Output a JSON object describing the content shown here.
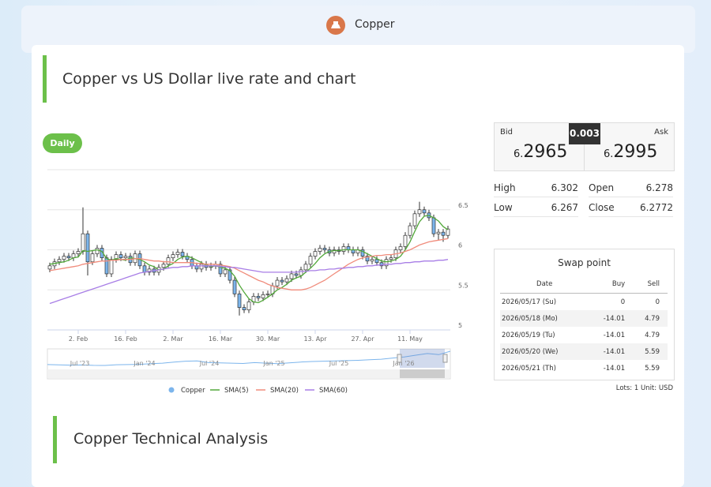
{
  "header": {
    "title": "Copper"
  },
  "page_title": "Copper vs US Dollar live rate and chart",
  "period": "Daily",
  "quote": {
    "bid_label": "Bid",
    "ask_label": "Ask",
    "spread": 0.003,
    "bid": {
      "lead": "6.",
      "main": "2965"
    },
    "ask": {
      "lead": "6.",
      "main": "2995"
    }
  },
  "stats": [
    {
      "label": "High",
      "value": 6.302
    },
    {
      "label": "Open",
      "value": 6.278
    },
    {
      "label": "Low",
      "value": 6.267
    },
    {
      "label": "Close",
      "value": 6.2772
    }
  ],
  "swap": {
    "title": "Swap point",
    "columns": [
      "Date",
      "Buy",
      "Sell"
    ],
    "rows": [
      [
        "2026/05/17 (Su)",
        0,
        0
      ],
      [
        "2026/05/18 (Mo)",
        -14.01,
        4.79
      ],
      [
        "2026/05/19 (Tu)",
        -14.01,
        4.79
      ],
      [
        "2026/05/20 (We)",
        -14.01,
        5.59
      ],
      [
        "2026/05/21 (Th)",
        -14.01,
        5.59
      ]
    ],
    "note": "Lots: 1 Unit: USD"
  },
  "section_title": "Copper Technical Analysis",
  "chart_data": {
    "type": "candlestick",
    "categories": [
      null,
      null,
      null,
      null,
      null,
      null,
      "2. Feb",
      null,
      null,
      null,
      null,
      null,
      null,
      null,
      null,
      null,
      "16. Feb",
      null,
      null,
      null,
      null,
      null,
      null,
      null,
      null,
      null,
      "2. Mar",
      null,
      null,
      null,
      null,
      null,
      null,
      null,
      null,
      null,
      "16. Mar",
      null,
      null,
      null,
      null,
      null,
      null,
      null,
      null,
      null,
      "30. Mar",
      null,
      null,
      null,
      null,
      null,
      null,
      null,
      null,
      null,
      "13. Apr",
      null,
      null,
      null,
      null,
      null,
      null,
      null,
      null,
      null,
      "27. Apr",
      null,
      null,
      null,
      null,
      null,
      null,
      null,
      null,
      null,
      "11. May",
      null,
      null,
      null,
      null,
      null,
      null,
      null,
      null
    ],
    "ylim": [
      5,
      7
    ],
    "yticks": [
      5,
      5.5,
      6,
      6.5
    ],
    "grid": true,
    "series": [
      {
        "name": "Copper",
        "color": "#7cb5ec",
        "up_color": "#ffffff",
        "line_color": "#333333",
        "open": [
          5.76,
          5.8,
          5.85,
          5.88,
          5.92,
          5.9,
          5.95,
          5.98,
          6.2,
          5.85,
          5.95,
          6.02,
          5.9,
          5.7,
          5.88,
          5.94,
          5.9,
          5.92,
          5.84,
          5.95,
          5.8,
          5.72,
          5.76,
          5.72,
          5.78,
          5.82,
          5.9,
          5.94,
          5.97,
          5.92,
          5.88,
          5.8,
          5.76,
          5.82,
          5.78,
          5.8,
          5.82,
          5.7,
          5.75,
          5.62,
          5.45,
          5.28,
          5.25,
          5.35,
          5.42,
          5.4,
          5.44,
          5.45,
          5.55,
          5.62,
          5.6,
          5.64,
          5.7,
          5.68,
          5.75,
          5.82,
          5.92,
          5.98,
          6.02,
          6.0,
          5.96,
          6.0,
          5.98,
          6.04,
          6.0,
          5.96,
          6.0,
          5.92,
          5.86,
          5.88,
          5.84,
          5.8,
          5.88,
          5.9,
          6.0,
          6.04,
          6.18,
          6.3,
          6.45,
          6.5,
          6.46,
          6.4,
          6.2,
          6.22,
          6.18
        ],
        "high": [
          5.84,
          5.89,
          5.92,
          5.96,
          5.96,
          5.99,
          6.02,
          6.53,
          6.24,
          5.99,
          6.06,
          6.06,
          5.94,
          5.92,
          5.98,
          5.98,
          5.96,
          5.96,
          5.99,
          5.99,
          5.84,
          5.8,
          5.8,
          5.82,
          5.86,
          5.94,
          5.98,
          6.01,
          6.01,
          5.96,
          5.92,
          5.84,
          5.86,
          5.86,
          5.84,
          5.86,
          5.86,
          5.79,
          5.79,
          5.66,
          5.49,
          5.32,
          5.39,
          5.46,
          5.46,
          5.48,
          5.49,
          5.59,
          5.66,
          5.66,
          5.68,
          5.74,
          5.74,
          5.79,
          5.86,
          5.96,
          6.02,
          6.06,
          6.06,
          6.04,
          6.04,
          6.04,
          6.08,
          6.08,
          6.04,
          6.04,
          6.04,
          5.96,
          5.92,
          5.92,
          5.88,
          5.92,
          5.94,
          6.04,
          6.08,
          6.22,
          6.34,
          6.49,
          6.6,
          6.54,
          6.5,
          6.44,
          6.26,
          6.26,
          6.3
        ],
        "low": [
          5.72,
          5.76,
          5.81,
          5.84,
          5.86,
          5.86,
          5.91,
          5.94,
          5.68,
          5.81,
          5.91,
          5.86,
          5.66,
          5.66,
          5.84,
          5.86,
          5.86,
          5.8,
          5.8,
          5.76,
          5.68,
          5.68,
          5.68,
          5.68,
          5.74,
          5.78,
          5.86,
          5.9,
          5.88,
          5.84,
          5.76,
          5.72,
          5.72,
          5.74,
          5.74,
          5.76,
          5.66,
          5.66,
          5.58,
          5.41,
          5.18,
          5.21,
          5.21,
          5.31,
          5.36,
          5.36,
          5.4,
          5.41,
          5.51,
          5.56,
          5.56,
          5.6,
          5.64,
          5.64,
          5.71,
          5.78,
          5.88,
          5.94,
          5.96,
          5.92,
          5.92,
          5.94,
          5.94,
          5.96,
          5.92,
          5.92,
          5.88,
          5.82,
          5.82,
          5.8,
          5.76,
          5.76,
          5.84,
          5.86,
          5.96,
          6.0,
          6.14,
          6.26,
          6.41,
          6.42,
          6.36,
          6.16,
          6.12,
          6.1,
          6.14
        ],
        "close": [
          5.8,
          5.85,
          5.88,
          5.92,
          5.9,
          5.95,
          5.98,
          6.2,
          5.85,
          5.95,
          6.02,
          5.9,
          5.7,
          5.88,
          5.94,
          5.9,
          5.92,
          5.84,
          5.95,
          5.8,
          5.72,
          5.76,
          5.72,
          5.78,
          5.82,
          5.9,
          5.94,
          5.97,
          5.92,
          5.88,
          5.8,
          5.76,
          5.82,
          5.78,
          5.8,
          5.82,
          5.7,
          5.75,
          5.62,
          5.45,
          5.28,
          5.25,
          5.35,
          5.42,
          5.4,
          5.44,
          5.45,
          5.55,
          5.62,
          5.6,
          5.64,
          5.7,
          5.68,
          5.75,
          5.82,
          5.92,
          5.98,
          6.02,
          6.0,
          5.96,
          6.0,
          5.98,
          6.04,
          6.0,
          5.96,
          6.0,
          5.92,
          5.86,
          5.88,
          5.84,
          5.8,
          5.88,
          5.9,
          6.0,
          6.04,
          6.18,
          6.3,
          6.45,
          6.5,
          6.46,
          6.4,
          6.2,
          6.22,
          6.18,
          6.26
        ]
      },
      {
        "name": "SMA(5)",
        "color": "#52a83a",
        "values": [
          5.82,
          5.83,
          5.84,
          5.85,
          5.87,
          5.9,
          5.91,
          5.99,
          5.98,
          5.99,
          6.0,
          5.98,
          5.89,
          5.87,
          5.89,
          5.88,
          5.87,
          5.9,
          5.89,
          5.88,
          5.85,
          5.81,
          5.79,
          5.75,
          5.76,
          5.8,
          5.83,
          5.88,
          5.91,
          5.92,
          5.9,
          5.87,
          5.84,
          5.81,
          5.79,
          5.8,
          5.78,
          5.77,
          5.74,
          5.67,
          5.56,
          5.47,
          5.39,
          5.35,
          5.34,
          5.37,
          5.41,
          5.45,
          5.5,
          5.53,
          5.57,
          5.62,
          5.65,
          5.67,
          5.72,
          5.77,
          5.83,
          5.9,
          5.95,
          5.98,
          5.99,
          5.99,
          6.0,
          6.0,
          6.0,
          6.0,
          5.98,
          5.95,
          5.92,
          5.89,
          5.86,
          5.85,
          5.86,
          5.88,
          5.92,
          6.0,
          6.1,
          6.23,
          6.35,
          6.42,
          6.43,
          6.4,
          6.36,
          6.29,
          6.25
        ]
      },
      {
        "name": "SMA(20)",
        "color": "#f08c7c",
        "values": [
          5.74,
          5.75,
          5.76,
          5.77,
          5.78,
          5.79,
          5.8,
          5.82,
          5.83,
          5.84,
          5.85,
          5.86,
          5.86,
          5.87,
          5.87,
          5.88,
          5.88,
          5.88,
          5.89,
          5.89,
          5.88,
          5.87,
          5.86,
          5.86,
          5.85,
          5.85,
          5.84,
          5.84,
          5.84,
          5.84,
          5.84,
          5.83,
          5.83,
          5.82,
          5.82,
          5.82,
          5.81,
          5.8,
          5.79,
          5.77,
          5.74,
          5.71,
          5.68,
          5.65,
          5.62,
          5.6,
          5.57,
          5.55,
          5.53,
          5.52,
          5.51,
          5.5,
          5.5,
          5.5,
          5.51,
          5.53,
          5.56,
          5.59,
          5.62,
          5.66,
          5.7,
          5.74,
          5.78,
          5.82,
          5.85,
          5.88,
          5.9,
          5.91,
          5.92,
          5.93,
          5.93,
          5.94,
          5.94,
          5.95,
          5.96,
          5.98,
          6.0,
          6.03,
          6.06,
          6.08,
          6.1,
          6.11,
          6.12,
          6.13,
          6.14
        ]
      },
      {
        "name": "SMA(60)",
        "color": "#a87ee6",
        "values": [
          5.33,
          5.35,
          5.37,
          5.39,
          5.41,
          5.43,
          5.45,
          5.47,
          5.49,
          5.51,
          5.53,
          5.55,
          5.57,
          5.59,
          5.61,
          5.63,
          5.65,
          5.67,
          5.69,
          5.71,
          5.72,
          5.73,
          5.74,
          5.75,
          5.76,
          5.77,
          5.78,
          5.78,
          5.79,
          5.79,
          5.8,
          5.8,
          5.8,
          5.8,
          5.8,
          5.8,
          5.79,
          5.79,
          5.78,
          5.78,
          5.77,
          5.76,
          5.75,
          5.74,
          5.73,
          5.72,
          5.72,
          5.72,
          5.72,
          5.72,
          5.72,
          5.72,
          5.72,
          5.73,
          5.73,
          5.74,
          5.74,
          5.75,
          5.75,
          5.76,
          5.76,
          5.77,
          5.77,
          5.78,
          5.78,
          5.79,
          5.79,
          5.8,
          5.8,
          5.81,
          5.81,
          5.82,
          5.82,
          5.83,
          5.83,
          5.84,
          5.84,
          5.85,
          5.85,
          5.86,
          5.86,
          5.86,
          5.87,
          5.87,
          5.88
        ]
      }
    ],
    "navigator": {
      "labels": [
        "Jul '23",
        "Jan '24",
        "Jul '24",
        "Jan '25",
        "Jul '25",
        "Jan '26"
      ],
      "values": [
        3.85,
        3.8,
        3.75,
        3.78,
        3.72,
        3.7,
        3.82,
        3.85,
        3.9,
        4.0,
        4.1,
        4.3,
        4.45,
        4.5,
        4.2,
        4.15,
        4.1,
        4.05,
        4.2,
        4.1,
        4.0,
        4.15,
        4.3,
        4.4,
        4.45,
        4.5,
        4.55,
        4.6,
        4.7,
        4.8,
        5.0,
        5.2,
        5.5,
        5.8,
        5.6,
        6.2
      ]
    }
  }
}
